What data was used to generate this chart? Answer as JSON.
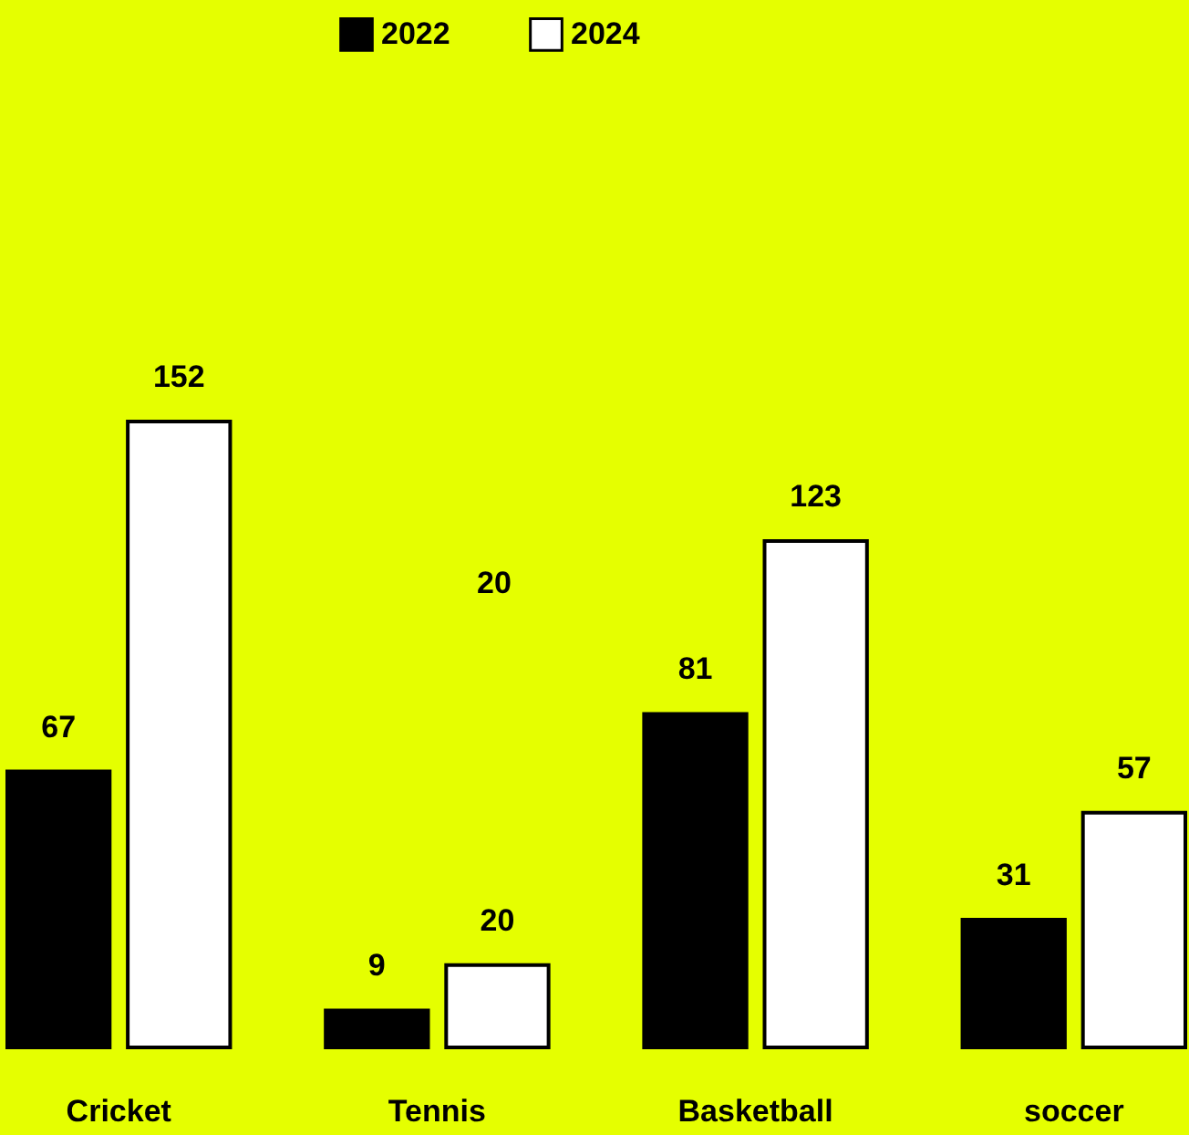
{
  "chart_data": {
    "type": "bar",
    "categories": [
      "Cricket",
      "Tennis",
      "Basketball",
      "soccer"
    ],
    "series": [
      {
        "name": "2022",
        "color": "#000000",
        "values": [
          67,
          9,
          81,
          31
        ]
      },
      {
        "name": "2024",
        "color": "#ffffff",
        "values": [
          152,
          20,
          123,
          57
        ]
      }
    ],
    "data_labels": true,
    "legend": "top",
    "grid": false,
    "annotations": [
      "20"
    ]
  }
}
